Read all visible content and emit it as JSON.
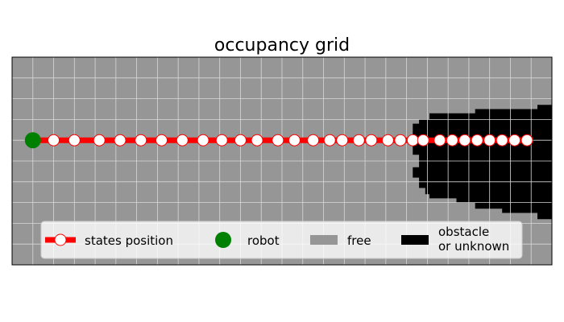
{
  "chart_data": {
    "type": "occupancy-grid-path",
    "title": "occupancy grid",
    "xlim": [
      0,
      26
    ],
    "ylim": [
      -10,
      0
    ],
    "grid": true,
    "colors": {
      "free": "#969696",
      "obstacle": "#000000",
      "path": "#ff0000",
      "state_fill": "#ffffff",
      "robot": "#008000",
      "grid": "#d8d8d8"
    },
    "robot": {
      "x": 1.0,
      "y": -4.0
    },
    "states_position": {
      "x": [
        2.0,
        3.0,
        4.2,
        5.2,
        6.2,
        7.2,
        8.2,
        9.2,
        10.1,
        11.0,
        11.8,
        12.8,
        13.6,
        14.5,
        15.3,
        15.9,
        16.7,
        17.3,
        18.1,
        18.7,
        19.3,
        19.8,
        20.6,
        21.2,
        21.8,
        22.4,
        23.0,
        23.6,
        24.2,
        24.8
      ],
      "y": [
        -4,
        -4,
        -4,
        -4,
        -4,
        -4,
        -4,
        -4,
        -4,
        -4,
        -4,
        -4,
        -4,
        -4,
        -4,
        -4,
        -4,
        -4,
        -4,
        -4,
        -4,
        -4,
        -4,
        -4,
        -4,
        -4,
        -4,
        -4,
        -4,
        -4
      ]
    },
    "obstacle_region": {
      "x": [
        26.0,
        25.3,
        25.3,
        22.3,
        22.3,
        20.1,
        20.1,
        19.6,
        19.6,
        19.3,
        19.3,
        19.6,
        19.6,
        19.3,
        19.3,
        19.6,
        19.6,
        19.9,
        19.9,
        20.1,
        20.1,
        21.4,
        21.4,
        22.3,
        22.3,
        23.6,
        23.6,
        25.3,
        25.3,
        26.0
      ],
      "y": [
        -2.3,
        -2.3,
        -2.5,
        -2.5,
        -2.7,
        -2.7,
        -3.0,
        -3.0,
        -3.2,
        -3.2,
        -4.7,
        -4.7,
        -5.3,
        -5.3,
        -5.8,
        -5.8,
        -6.3,
        -6.3,
        -6.6,
        -6.6,
        -6.8,
        -6.8,
        -7.0,
        -7.0,
        -7.3,
        -7.3,
        -7.5,
        -7.5,
        -7.8,
        -7.8
      ]
    },
    "legend": {
      "placement": "lower-center",
      "entries": [
        {
          "key": "states",
          "label": "states position"
        },
        {
          "key": "robot",
          "label": "robot"
        },
        {
          "key": "free",
          "label": "free"
        },
        {
          "key": "obstacle",
          "label_lines": [
            "obstacle",
            "or unknown"
          ]
        }
      ]
    }
  }
}
